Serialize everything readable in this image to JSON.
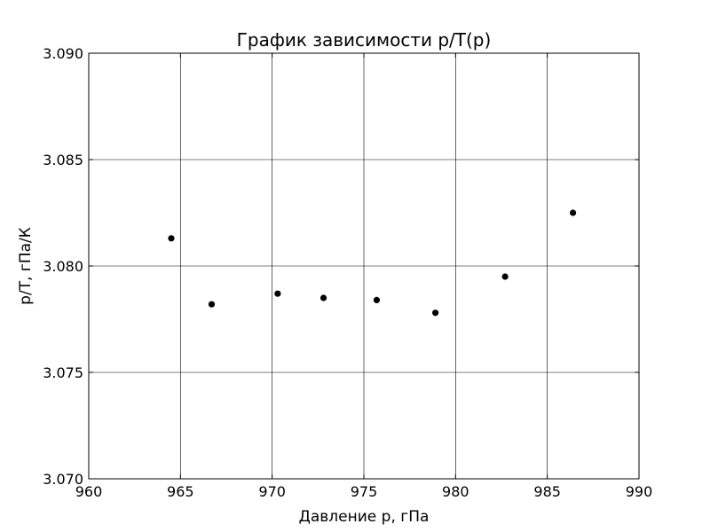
{
  "chart_data": {
    "type": "scatter",
    "title": "График зависимости p/T(p)",
    "xlabel": "Давление p, гПа",
    "ylabel": "p/T, гПа/К",
    "xlim": [
      960,
      990
    ],
    "ylim": [
      3.07,
      3.09
    ],
    "x_ticks": [
      "960",
      "965",
      "970",
      "975",
      "980",
      "985",
      "990"
    ],
    "y_ticks": [
      "3.070",
      "3.075",
      "3.080",
      "3.085",
      "3.090"
    ],
    "grid": true,
    "legend": "none",
    "marker_color": "#000000",
    "points": [
      {
        "x": 964.5,
        "y": 3.0813
      },
      {
        "x": 966.7,
        "y": 3.0782
      },
      {
        "x": 970.3,
        "y": 3.0787
      },
      {
        "x": 972.8,
        "y": 3.0785
      },
      {
        "x": 975.7,
        "y": 3.0784
      },
      {
        "x": 978.9,
        "y": 3.0778
      },
      {
        "x": 982.7,
        "y": 3.0795
      },
      {
        "x": 986.4,
        "y": 3.0825
      }
    ]
  }
}
